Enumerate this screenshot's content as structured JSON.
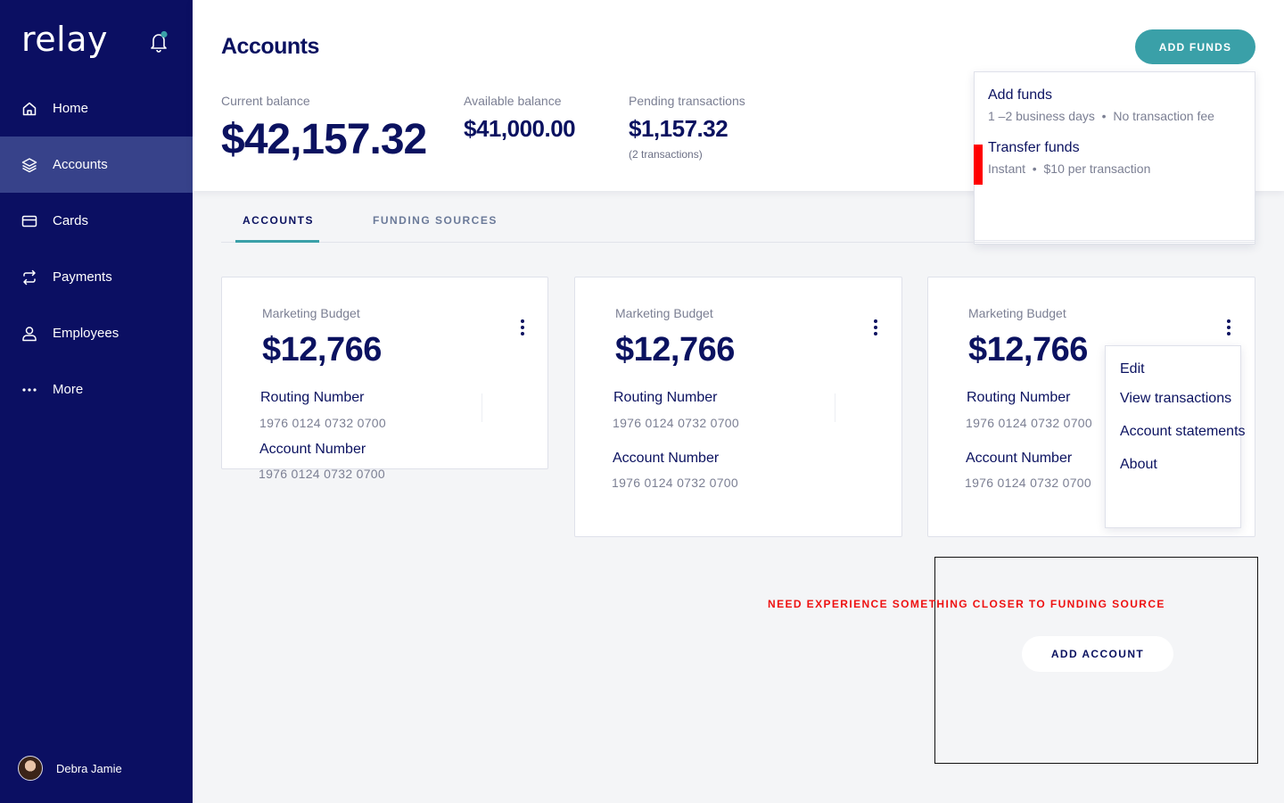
{
  "app": {
    "logo": "relay"
  },
  "sidebar": {
    "items": [
      {
        "label": "Home",
        "icon": "home-icon"
      },
      {
        "label": "Accounts",
        "icon": "layers-icon",
        "active": true
      },
      {
        "label": "Cards",
        "icon": "card-icon"
      },
      {
        "label": "Payments",
        "icon": "transfer-icon"
      },
      {
        "label": "Employees",
        "icon": "person-icon"
      },
      {
        "label": "More",
        "icon": "more-icon"
      }
    ],
    "user": {
      "name": "Debra Jamie"
    }
  },
  "header": {
    "title": "Accounts",
    "current_balance": {
      "label": "Current balance",
      "value": "$42,157.32"
    },
    "available_balance": {
      "label": "Available balance",
      "value": "$41,000.00"
    },
    "pending": {
      "label": "Pending transactions",
      "value": "$1,157.32",
      "sub": "(2 transactions)"
    },
    "add_funds_label": "ADD FUNDS"
  },
  "funds_menu": {
    "options": [
      {
        "title": "Add funds",
        "desc_a": "1 –2 business days",
        "desc_b": "No transaction fee"
      },
      {
        "title": "Transfer funds",
        "desc_a": "Instant",
        "desc_b": "$10 per transaction"
      }
    ]
  },
  "tabs": [
    {
      "label": "ACCOUNTS",
      "active": true
    },
    {
      "label": "FUNDING SOURCES",
      "active": false
    }
  ],
  "cards": [
    {
      "name": "Marketing Budget",
      "amount": "$12,766",
      "routing_label": "Routing Number",
      "routing": "1976 0124 0732 0700",
      "account_label": "Account Number",
      "account": "1976 0124 0732 0700"
    },
    {
      "name": "Marketing Budget",
      "amount": "$12,766",
      "routing_label": "Routing Number",
      "routing": "1976 0124 0732 0700",
      "account_label": "Account Number",
      "account": "1976 0124 0732 0700"
    },
    {
      "name": "Marketing Budget",
      "amount": "$12,766",
      "routing_label": "Routing Number",
      "routing": "1976 0124 0732 0700",
      "account_label": "Account Number",
      "account": "1976 0124 0732 0700"
    }
  ],
  "account_menu": {
    "items": [
      "Edit",
      "View transactions",
      "Account statements",
      "About"
    ]
  },
  "annotation": {
    "note": "NEED EXPERIENCE SOMETHING CLOSER TO FUNDING SOURCE",
    "add_account_label": "ADD ACCOUNT"
  },
  "colors": {
    "sidebar_bg": "#0b0f62",
    "sidebar_active": "#37428a",
    "accent": "#3aa0a8",
    "text_primary": "#0b1260",
    "annotation_red": "#ee1111"
  }
}
